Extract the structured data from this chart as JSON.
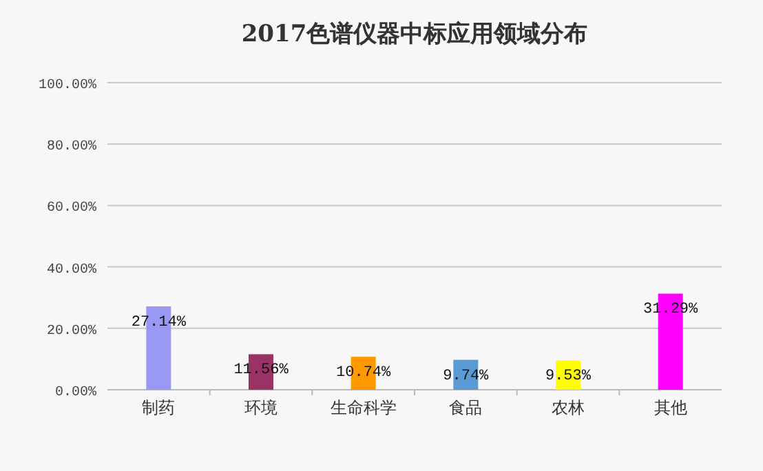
{
  "chart_data": {
    "type": "bar",
    "title": "2017色谱仪器中标应用领域分布",
    "categories": [
      "制药",
      "环境",
      "生命科学",
      "食品",
      "农林",
      "其他"
    ],
    "values": [
      27.14,
      11.56,
      10.74,
      9.74,
      9.53,
      31.29
    ],
    "colors": [
      "#9999f5",
      "#993366",
      "#ff9900",
      "#5b9bd5",
      "#ffff00",
      "#ff00ff"
    ],
    "value_labels": [
      "27.14%",
      "11.56%",
      "10.74%",
      "9.74%",
      "9.53%",
      "31.29%"
    ],
    "ylim": [
      0,
      100
    ],
    "yticks": [
      {
        "value": 0,
        "label": "0.00%"
      },
      {
        "value": 20,
        "label": "20.00%"
      },
      {
        "value": 40,
        "label": "40.00%"
      },
      {
        "value": 60,
        "label": "60.00%"
      },
      {
        "value": 80,
        "label": "80.00%"
      },
      {
        "value": 100,
        "label": "100.00%"
      }
    ],
    "grid": "y"
  }
}
